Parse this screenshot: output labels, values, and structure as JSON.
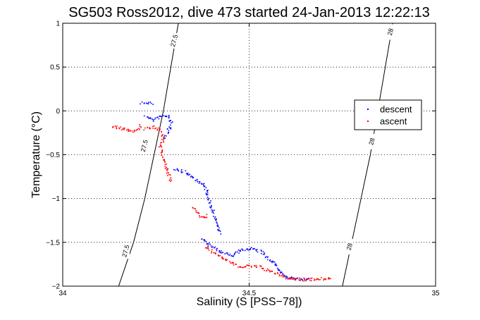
{
  "chart_data": {
    "type": "scatter",
    "title": "SG503 Ross2012, dive 473 started 24-Jan-2013 12:22:13",
    "xlabel": "Salinity (S [PSS−78])",
    "ylabel": "Temperature (°C)",
    "xlim": [
      34,
      35
    ],
    "ylim": [
      -2,
      1
    ],
    "xticks": [
      34,
      34.5,
      35
    ],
    "xtick_labels": [
      "34",
      "34.5",
      "35"
    ],
    "yticks": [
      -2,
      -1.5,
      -1,
      -0.5,
      0,
      0.5,
      1
    ],
    "ytick_labels": [
      "−2",
      "−1.5",
      "−1",
      "−0.5",
      "0",
      "0.5",
      "1"
    ],
    "grid": true,
    "legend": {
      "placement": "right",
      "entries": [
        "descent",
        "ascent"
      ]
    },
    "colors": {
      "descent": "#0000ff",
      "ascent": "#ff0000",
      "contour": "#000000"
    },
    "contours": [
      {
        "label": "27.5",
        "points": [
          [
            34.15,
            -2.0
          ],
          [
            34.19,
            -1.5
          ],
          [
            34.22,
            -1.0
          ],
          [
            34.245,
            -0.5
          ],
          [
            34.27,
            0.0
          ],
          [
            34.29,
            0.5
          ],
          [
            34.31,
            1.0
          ]
        ],
        "labels_at": [
          [
            34.17,
            -1.6
          ],
          [
            34.22,
            -0.4
          ],
          [
            34.3,
            0.8
          ]
        ]
      },
      {
        "label": "28",
        "points": [
          [
            34.75,
            -2.0
          ],
          [
            34.775,
            -1.5
          ],
          [
            34.8,
            -1.0
          ],
          [
            34.825,
            -0.5
          ],
          [
            34.845,
            0.0
          ],
          [
            34.865,
            0.5
          ],
          [
            34.885,
            1.0
          ]
        ],
        "labels_at": [
          [
            34.77,
            -1.55
          ],
          [
            34.83,
            -0.35
          ],
          [
            34.88,
            0.9
          ]
        ]
      }
    ],
    "series": [
      {
        "name": "descent",
        "segments": [
          [
            [
              34.21,
              0.1
            ],
            [
              34.24,
              0.09
            ]
          ],
          [
            [
              34.22,
              -0.05
            ],
            [
              34.24,
              -0.1
            ],
            [
              34.26,
              -0.06
            ],
            [
              34.28,
              -0.05
            ],
            [
              34.29,
              -0.12
            ],
            [
              34.28,
              -0.25
            ],
            [
              34.27,
              -0.3
            ]
          ],
          [
            [
              34.3,
              -0.65
            ],
            [
              34.33,
              -0.7
            ],
            [
              34.36,
              -0.8
            ],
            [
              34.38,
              -0.85
            ],
            [
              34.39,
              -1.0
            ],
            [
              34.41,
              -1.25
            ],
            [
              34.42,
              -1.4
            ]
          ],
          [
            [
              34.37,
              -1.45
            ],
            [
              34.39,
              -1.52
            ],
            [
              34.42,
              -1.6
            ],
            [
              34.45,
              -1.65
            ],
            [
              34.47,
              -1.6
            ],
            [
              34.5,
              -1.56
            ],
            [
              34.53,
              -1.6
            ],
            [
              34.55,
              -1.68
            ],
            [
              34.57,
              -1.75
            ],
            [
              34.58,
              -1.82
            ],
            [
              34.6,
              -1.9
            ],
            [
              34.66,
              -1.92
            ]
          ]
        ]
      },
      {
        "name": "ascent",
        "segments": [
          [
            [
              34.13,
              -0.17
            ],
            [
              34.16,
              -0.2
            ],
            [
              34.19,
              -0.23
            ],
            [
              34.2,
              -0.2
            ],
            [
              34.21,
              -0.15
            ]
          ],
          [
            [
              34.22,
              -0.2
            ],
            [
              34.24,
              -0.18
            ],
            [
              34.26,
              -0.22
            ],
            [
              34.27,
              -0.3
            ],
            [
              34.26,
              -0.4
            ],
            [
              34.27,
              -0.55
            ],
            [
              34.28,
              -0.7
            ],
            [
              34.29,
              -0.8
            ]
          ],
          [
            [
              34.35,
              -1.1
            ],
            [
              34.36,
              -1.15
            ],
            [
              34.37,
              -1.2
            ],
            [
              34.38,
              -1.22
            ],
            [
              34.39,
              -1.18
            ]
          ],
          [
            [
              34.38,
              -1.55
            ],
            [
              34.4,
              -1.6
            ],
            [
              34.42,
              -1.65
            ],
            [
              34.44,
              -1.7
            ],
            [
              34.46,
              -1.75
            ],
            [
              34.48,
              -1.78
            ],
            [
              34.5,
              -1.76
            ],
            [
              34.53,
              -1.78
            ],
            [
              34.55,
              -1.82
            ],
            [
              34.58,
              -1.86
            ],
            [
              34.6,
              -1.9
            ],
            [
              34.64,
              -1.92
            ],
            [
              34.7,
              -1.91
            ],
            [
              34.72,
              -1.89
            ]
          ]
        ]
      }
    ]
  }
}
